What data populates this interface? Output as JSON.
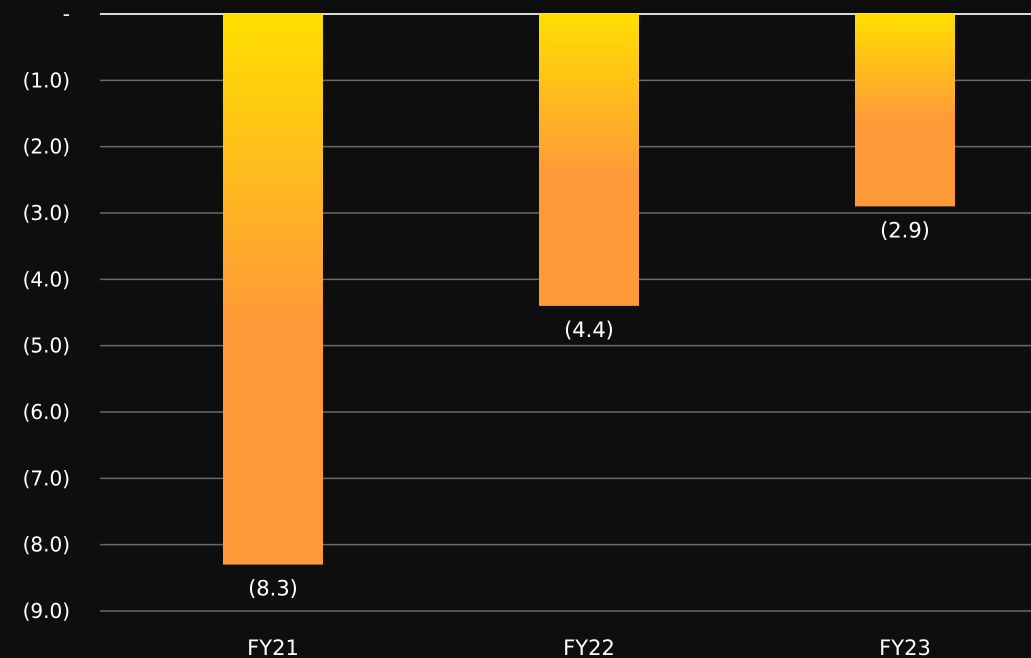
{
  "chart_data": {
    "type": "bar",
    "categories": [
      "FY21",
      "FY22",
      "FY23"
    ],
    "values": [
      -8.3,
      -4.4,
      -2.9
    ],
    "data_labels": [
      "(8.3)",
      "(4.4)",
      "(2.9)"
    ],
    "ylim": [
      -9.0,
      0
    ],
    "y_ticks": [
      0,
      -1,
      -2,
      -3,
      -4,
      -5,
      -6,
      -7,
      -8,
      -9
    ],
    "y_tick_labels": [
      "-",
      "(1.0)",
      "(2.0)",
      "(3.0)",
      "(4.0)",
      "(5.0)",
      "(6.0)",
      "(7.0)",
      "(8.0)",
      "(9.0)"
    ],
    "grid": true,
    "legend": "none",
    "colors": {
      "background": "#0e0e0e",
      "bar_top": "#ffdf00",
      "bar_bottom": "#ff9a38",
      "grid": "#6a6a6a",
      "zero_line": "#d9d9d9",
      "text": "#ffffff"
    }
  }
}
